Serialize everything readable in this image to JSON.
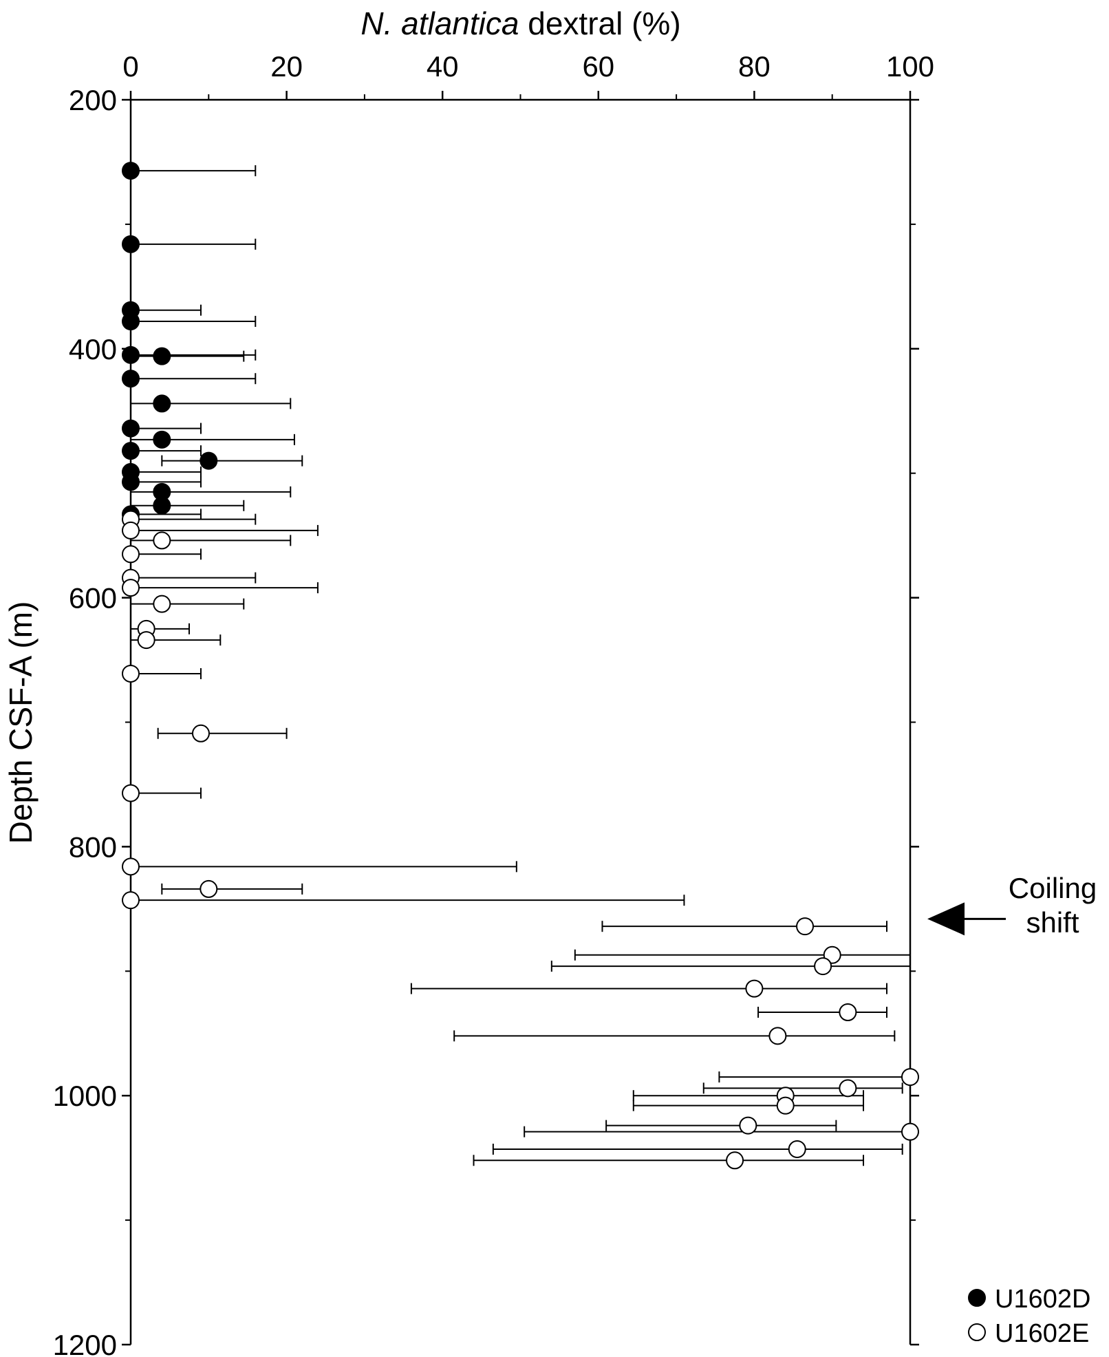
{
  "chart_data": {
    "type": "scatter",
    "title": "",
    "xlabel": {
      "italic": "N. atlantica",
      "rest": " dextral (%)"
    },
    "ylabel": "Depth CSF-A (m)",
    "xlim": [
      0,
      100
    ],
    "ylim": [
      200,
      1200
    ],
    "y_inverted": true,
    "x_axis_position": "top",
    "x_ticks": [
      0,
      20,
      40,
      60,
      80,
      100
    ],
    "x_tick_labels": [
      "0",
      "20",
      "40",
      "60",
      "80",
      "100"
    ],
    "y_ticks": [
      200,
      400,
      600,
      800,
      1000,
      1200
    ],
    "y_tick_labels": [
      "200",
      "400",
      "600",
      "800",
      "1000",
      "1200"
    ],
    "grid": false,
    "legend_position": "bottom-right",
    "annotation": {
      "lines": [
        "Coiling",
        "shift"
      ],
      "depth": 858
    },
    "series": [
      {
        "name": "U1602D",
        "marker": "filled-circle",
        "color": "#000000",
        "points": [
          {
            "x": 0,
            "y": 257,
            "xmin": 0,
            "xmax": 16
          },
          {
            "x": 0,
            "y": 316,
            "xmin": 0,
            "xmax": 16
          },
          {
            "x": 0,
            "y": 369,
            "xmin": 0,
            "xmax": 9
          },
          {
            "x": 0,
            "y": 378,
            "xmin": 0,
            "xmax": 16
          },
          {
            "x": 0,
            "y": 405,
            "xmin": 0,
            "xmax": 16
          },
          {
            "x": 4,
            "y": 406,
            "xmin": 0,
            "xmax": 14.5
          },
          {
            "x": 0,
            "y": 424,
            "xmin": 0,
            "xmax": 16
          },
          {
            "x": 4,
            "y": 444,
            "xmin": 0,
            "xmax": 20.5
          },
          {
            "x": 0,
            "y": 464,
            "xmin": 0,
            "xmax": 9
          },
          {
            "x": 4,
            "y": 473,
            "xmin": 0,
            "xmax": 21
          },
          {
            "x": 0,
            "y": 482,
            "xmin": 0,
            "xmax": 9
          },
          {
            "x": 10,
            "y": 490,
            "xmin": 4,
            "xmax": 22
          },
          {
            "x": 0,
            "y": 499,
            "xmin": 0,
            "xmax": 9
          },
          {
            "x": 0,
            "y": 507,
            "xmin": 0,
            "xmax": 9
          },
          {
            "x": 4,
            "y": 515,
            "xmin": 0,
            "xmax": 20.5
          },
          {
            "x": 4,
            "y": 526,
            "xmin": 0,
            "xmax": 14.5
          },
          {
            "x": 0,
            "y": 533,
            "xmin": 0,
            "xmax": 9
          }
        ]
      },
      {
        "name": "U1602E",
        "marker": "open-circle",
        "color": "#000000",
        "points": [
          {
            "x": 0,
            "y": 537,
            "xmin": 0,
            "xmax": 16
          },
          {
            "x": 0,
            "y": 546,
            "xmin": 0,
            "xmax": 24
          },
          {
            "x": 4,
            "y": 554,
            "xmin": 0,
            "xmax": 20.5
          },
          {
            "x": 0,
            "y": 565,
            "xmin": 0,
            "xmax": 9
          },
          {
            "x": 0,
            "y": 584,
            "xmin": 0,
            "xmax": 16
          },
          {
            "x": 0,
            "y": 592,
            "xmin": 0,
            "xmax": 24
          },
          {
            "x": 4,
            "y": 605,
            "xmin": 0,
            "xmax": 14.5
          },
          {
            "x": 2,
            "y": 625,
            "xmin": 0,
            "xmax": 7.5
          },
          {
            "x": 2,
            "y": 634,
            "xmin": 0,
            "xmax": 11.5
          },
          {
            "x": 0,
            "y": 661,
            "xmin": 0,
            "xmax": 9
          },
          {
            "x": 9,
            "y": 709,
            "xmin": 3.5,
            "xmax": 20
          },
          {
            "x": 0,
            "y": 757,
            "xmin": 0,
            "xmax": 9
          },
          {
            "x": 0,
            "y": 816,
            "xmin": 0,
            "xmax": 49.5
          },
          {
            "x": 10,
            "y": 834,
            "xmin": 4,
            "xmax": 22
          },
          {
            "x": 0,
            "y": 843,
            "xmin": 0,
            "xmax": 71
          },
          {
            "x": 86.5,
            "y": 864,
            "xmin": 60.5,
            "xmax": 97
          },
          {
            "x": 90,
            "y": 887,
            "xmin": 57,
            "xmax": 100
          },
          {
            "x": 88.8,
            "y": 896,
            "xmin": 54,
            "xmax": 100
          },
          {
            "x": 80,
            "y": 914,
            "xmin": 36,
            "xmax": 97
          },
          {
            "x": 92,
            "y": 933,
            "xmin": 80.5,
            "xmax": 97
          },
          {
            "x": 83,
            "y": 952,
            "xmin": 41.5,
            "xmax": 98
          },
          {
            "x": 100,
            "y": 985,
            "xmin": 75.5,
            "xmax": 100
          },
          {
            "x": 92,
            "y": 994,
            "xmin": 73.5,
            "xmax": 99
          },
          {
            "x": 84,
            "y": 1000,
            "xmin": 64.5,
            "xmax": 94
          },
          {
            "x": 84,
            "y": 1008,
            "xmin": 64.5,
            "xmax": 94
          },
          {
            "x": 79.2,
            "y": 1024,
            "xmin": 61,
            "xmax": 90.5
          },
          {
            "x": 100,
            "y": 1029,
            "xmin": 50.5,
            "xmax": 100
          },
          {
            "x": 85.5,
            "y": 1043,
            "xmin": 46.5,
            "xmax": 99
          },
          {
            "x": 77.5,
            "y": 1052,
            "xmin": 44,
            "xmax": 94
          }
        ]
      }
    ]
  }
}
